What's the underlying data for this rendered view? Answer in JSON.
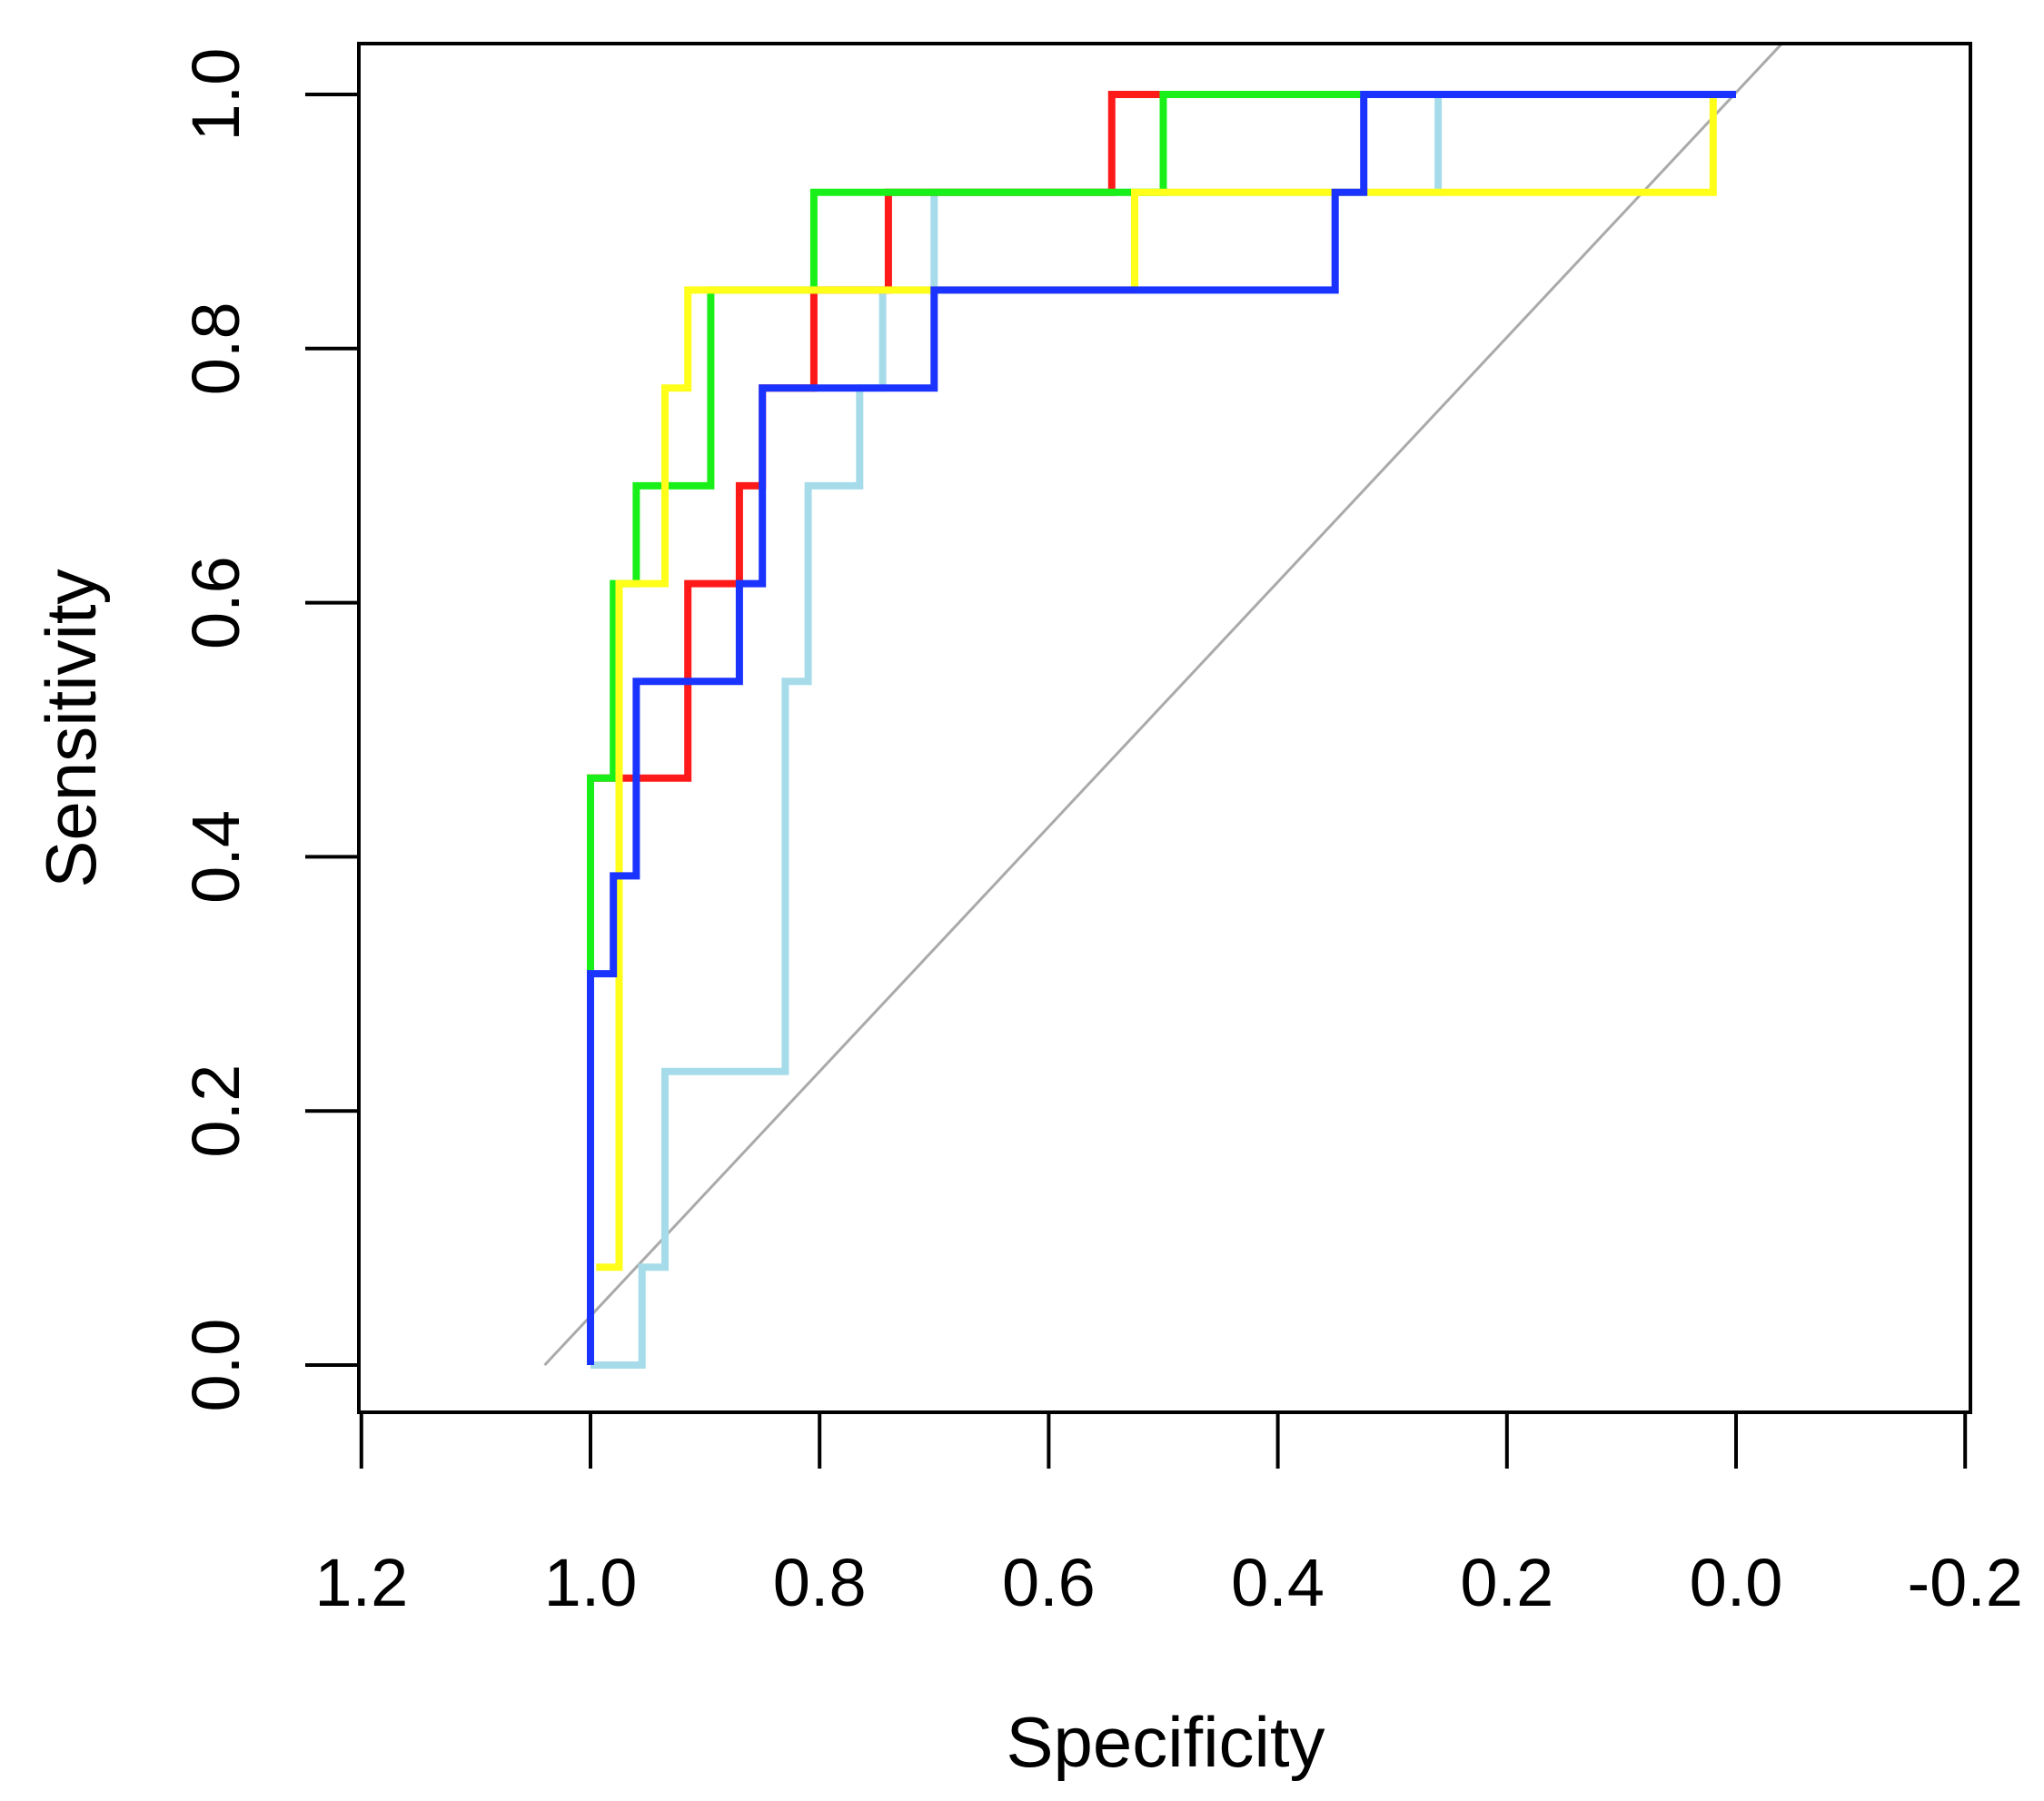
{
  "chart_data": {
    "type": "line",
    "title": "",
    "xlabel": "Specificity",
    "ylabel": "Sensitivity",
    "xlim": [
      1.2,
      -0.2
    ],
    "ylim": [
      0.0,
      1.0
    ],
    "x_ticks": [
      1.2,
      1.0,
      0.8,
      0.6,
      0.4,
      0.2,
      0.0,
      -0.2
    ],
    "x_tick_labels": [
      "1.2",
      "1.0",
      "0.8",
      "0.6",
      "0.4",
      "0.2",
      "0.0",
      "-0.2"
    ],
    "y_ticks": [
      0.0,
      0.2,
      0.4,
      0.6,
      0.8,
      1.0
    ],
    "y_tick_labels": [
      "0.0",
      "0.2",
      "0.4",
      "0.6",
      "0.8",
      "1.0"
    ],
    "grid": false,
    "legend": "none",
    "reference_line": {
      "color": "#aaaaaa",
      "points": [
        [
          1.04,
          0.0
        ],
        [
          -0.04,
          1.04
        ]
      ]
    },
    "series": [
      {
        "name": "lightblue",
        "color": "#a6dcea",
        "points": [
          [
            1.0,
            0.0
          ],
          [
            0.955,
            0.0
          ],
          [
            0.955,
            0.077
          ],
          [
            0.935,
            0.077
          ],
          [
            0.935,
            0.231
          ],
          [
            0.83,
            0.231
          ],
          [
            0.83,
            0.538
          ],
          [
            0.81,
            0.538
          ],
          [
            0.81,
            0.692
          ],
          [
            0.765,
            0.692
          ],
          [
            0.765,
            0.769
          ],
          [
            0.745,
            0.769
          ],
          [
            0.745,
            0.846
          ],
          [
            0.7,
            0.846
          ],
          [
            0.7,
            0.923
          ],
          [
            0.26,
            0.923
          ],
          [
            0.26,
            1.0
          ],
          [
            0.0,
            1.0
          ]
        ]
      },
      {
        "name": "red",
        "color": "#ff1a1a",
        "points": [
          [
            1.0,
            0.0
          ],
          [
            1.0,
            0.462
          ],
          [
            0.915,
            0.462
          ],
          [
            0.915,
            0.615
          ],
          [
            0.87,
            0.615
          ],
          [
            0.87,
            0.692
          ],
          [
            0.85,
            0.692
          ],
          [
            0.85,
            0.769
          ],
          [
            0.805,
            0.769
          ],
          [
            0.805,
            0.846
          ],
          [
            0.74,
            0.846
          ],
          [
            0.74,
            0.923
          ],
          [
            0.545,
            0.923
          ],
          [
            0.545,
            1.0
          ],
          [
            0.0,
            1.0
          ]
        ]
      },
      {
        "name": "green",
        "color": "#19f019",
        "points": [
          [
            1.0,
            0.308
          ],
          [
            1.0,
            0.462
          ],
          [
            0.98,
            0.462
          ],
          [
            0.98,
            0.615
          ],
          [
            0.96,
            0.615
          ],
          [
            0.96,
            0.692
          ],
          [
            0.895,
            0.692
          ],
          [
            0.895,
            0.846
          ],
          [
            0.805,
            0.846
          ],
          [
            0.805,
            0.923
          ],
          [
            0.5,
            0.923
          ],
          [
            0.5,
            1.0
          ],
          [
            0.325,
            1.0
          ]
        ]
      },
      {
        "name": "yellow",
        "color": "#ffff1a",
        "points": [
          [
            0.995,
            0.077
          ],
          [
            0.975,
            0.077
          ],
          [
            0.975,
            0.615
          ],
          [
            0.935,
            0.615
          ],
          [
            0.935,
            0.769
          ],
          [
            0.915,
            0.769
          ],
          [
            0.915,
            0.846
          ],
          [
            0.525,
            0.846
          ],
          [
            0.525,
            0.923
          ],
          [
            0.02,
            0.923
          ],
          [
            0.02,
            1.0
          ]
        ]
      },
      {
        "name": "blue",
        "color": "#1a33ff",
        "points": [
          [
            1.0,
            0.0
          ],
          [
            1.0,
            0.308
          ],
          [
            0.98,
            0.308
          ],
          [
            0.98,
            0.385
          ],
          [
            0.96,
            0.385
          ],
          [
            0.96,
            0.538
          ],
          [
            0.87,
            0.538
          ],
          [
            0.87,
            0.615
          ],
          [
            0.85,
            0.615
          ],
          [
            0.85,
            0.769
          ],
          [
            0.7,
            0.769
          ],
          [
            0.7,
            0.846
          ],
          [
            0.35,
            0.846
          ],
          [
            0.35,
            0.923
          ],
          [
            0.325,
            0.923
          ],
          [
            0.325,
            1.0
          ],
          [
            0.0,
            1.0
          ]
        ]
      }
    ]
  }
}
